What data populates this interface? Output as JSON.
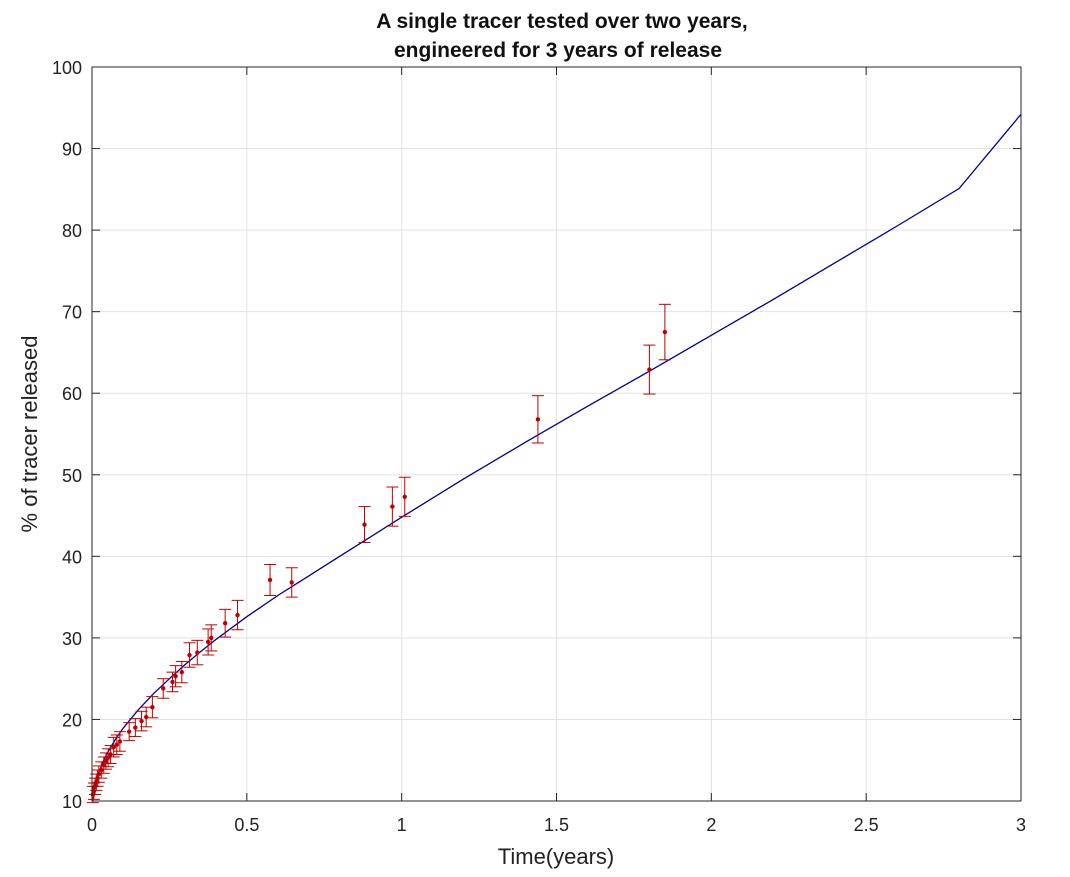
{
  "chart_data": {
    "type": "scatter",
    "title_lines": [
      "A single tracer tested over two years,",
      "engineered for 3 years of release"
    ],
    "xlabel": "Time(years)",
    "ylabel": "% of tracer released",
    "xlim": [
      0,
      3
    ],
    "ylim": [
      10,
      100
    ],
    "x_ticks": [
      "0",
      "0.5",
      "1",
      "1.5",
      "2",
      "2.5",
      "3"
    ],
    "y_ticks": [
      "10",
      "20",
      "30",
      "40",
      "50",
      "60",
      "70",
      "80",
      "90",
      "100"
    ],
    "grid": true,
    "colors": {
      "points": "#c00000",
      "fit_line": "#00008b",
      "grid": "#e2e2e2",
      "axes": "#262626"
    },
    "measured": {
      "x": [
        0.003,
        0.006,
        0.01,
        0.014,
        0.018,
        0.022,
        0.03,
        0.038,
        0.045,
        0.052,
        0.06,
        0.07,
        0.08,
        0.09,
        0.12,
        0.14,
        0.16,
        0.175,
        0.195,
        0.23,
        0.26,
        0.27,
        0.29,
        0.315,
        0.34,
        0.375,
        0.385,
        0.43,
        0.47,
        0.575,
        0.645,
        0.88,
        0.97,
        1.01,
        1.44,
        1.8,
        1.85
      ],
      "y": [
        10.8,
        11.2,
        11.8,
        12.3,
        12.8,
        13.3,
        13.8,
        14.4,
        14.9,
        15.3,
        15.7,
        16.6,
        16.9,
        17.3,
        18.5,
        19.0,
        19.8,
        20.3,
        21.5,
        23.8,
        24.6,
        25.3,
        25.8,
        27.9,
        28.2,
        29.5,
        30.0,
        31.8,
        32.8,
        37.1,
        36.8,
        43.9,
        46.1,
        47.3,
        56.8,
        62.9,
        67.5
      ],
      "err": [
        1.0,
        1.0,
        1.0,
        1.0,
        1.0,
        1.0,
        1.0,
        1.0,
        1.0,
        1.1,
        1.1,
        1.2,
        1.2,
        1.2,
        1.1,
        1.1,
        1.2,
        1.2,
        1.3,
        1.2,
        1.2,
        1.3,
        1.3,
        1.5,
        1.5,
        1.6,
        1.6,
        1.7,
        1.8,
        1.9,
        1.8,
        2.2,
        2.4,
        2.4,
        2.9,
        3.0,
        3.4
      ]
    },
    "fit": {
      "x": [
        0,
        0.01,
        0.02,
        0.04,
        0.06,
        0.08,
        0.1,
        0.15,
        0.2,
        0.25,
        0.3,
        0.35,
        0.4,
        0.5,
        0.6,
        0.7,
        0.8,
        0.9,
        1.0,
        1.2,
        1.4,
        1.6,
        1.8,
        2.0,
        2.2,
        2.4,
        2.6,
        2.8,
        3.0
      ],
      "y": [
        10,
        12.0,
        13.3,
        15.2,
        16.6,
        17.8,
        18.9,
        21.2,
        23.2,
        25.0,
        26.7,
        28.3,
        29.8,
        32.6,
        35.2,
        37.6,
        40.0,
        42.4,
        44.8,
        49.5,
        54.0,
        58.4,
        62.7,
        67.1,
        71.5,
        76.0,
        80.5,
        85.1,
        94.2
      ]
    }
  }
}
